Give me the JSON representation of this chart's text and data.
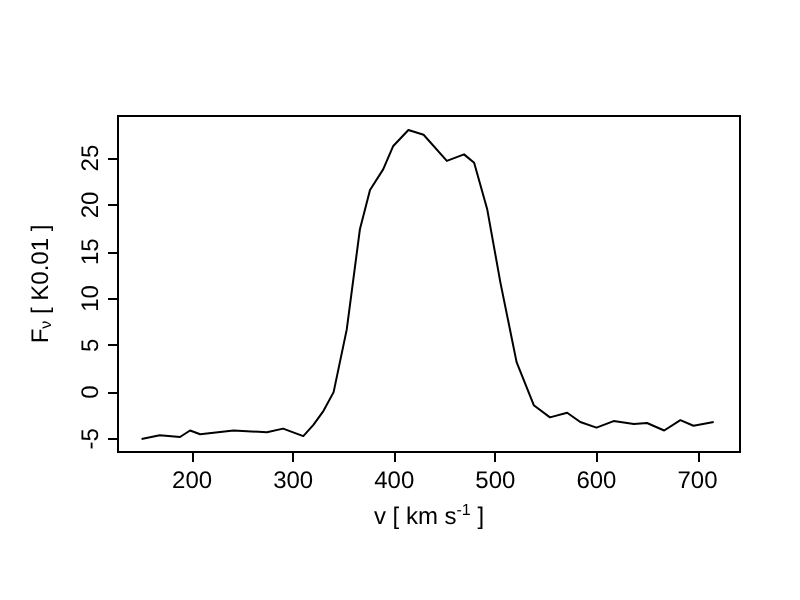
{
  "chart_data": {
    "type": "line",
    "xlabel": "v [ km s$^{-1}$ ]",
    "ylabel": "F$_{ν}$ [ K0.01 ]",
    "x": [
      150,
      168,
      188,
      198,
      208,
      241,
      274,
      290,
      310,
      320,
      330,
      340,
      353,
      366,
      376,
      389,
      399,
      414,
      429,
      452,
      469,
      479,
      492,
      505,
      521,
      538,
      554,
      571,
      584,
      600,
      617,
      637,
      650,
      667,
      683,
      696,
      716
    ],
    "series": [
      {
        "color": "#000000",
        "values": [
          -5,
          -4.6,
          -4.8,
          -4.1,
          -4.5,
          -4.1,
          -4.3,
          -3.9,
          -4.7,
          -3.5,
          -2,
          0,
          6.7,
          17.4,
          21.6,
          23.8,
          26.3,
          28,
          27.5,
          24.7,
          25.4,
          24.5,
          19.5,
          11.7,
          3.2,
          -1.4,
          -2.7,
          -2.2,
          -3.2,
          -3.8,
          -3.1,
          -3.4,
          -3.3,
          -4.1,
          -3,
          -3.6,
          -3.2
        ]
      }
    ],
    "xlim": [
      126.7,
      742
    ],
    "ylim": [
      -6.4,
      29.5
    ],
    "xticks": [
      200,
      300,
      400,
      500,
      600,
      700
    ],
    "yticks": [
      -5,
      0,
      5,
      10,
      15,
      20,
      25
    ],
    "grid": false,
    "marker": "none",
    "line_style": "solid"
  }
}
